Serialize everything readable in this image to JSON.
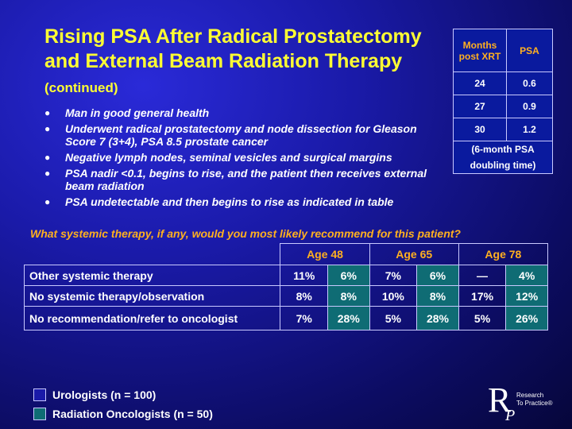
{
  "title": {
    "main": "Rising PSA After Radical Prostatectomy and External Beam Radiation Therapy",
    "suffix": "(continued)"
  },
  "bullets": [
    "Man in good general health",
    "Underwent radical prostatectomy and node dissection for Gleason Score 7 (3+4), PSA 8.5 prostate cancer",
    "Negative lymph nodes, seminal vesicles and surgical margins",
    "PSA nadir <0.1, begins to rise, and the patient then receives external beam radiation",
    "PSA undetectable and then begins to rise as indicated in table"
  ],
  "psa_table": {
    "header_months": "Months post XRT",
    "header_psa": "PSA",
    "rows": [
      {
        "months": "24",
        "psa": "0.6"
      },
      {
        "months": "27",
        "psa": "0.9"
      },
      {
        "months": "30",
        "psa": "1.2"
      }
    ],
    "footer": "(6-month PSA doubling time)"
  },
  "question": "What systemic therapy, if any, would you most likely recommend for this patient?",
  "main_table": {
    "ages": [
      "Age 48",
      "Age 65",
      "Age 78"
    ],
    "rows": [
      {
        "label": "Other systemic therapy",
        "values": [
          "11%",
          "6%",
          "7%",
          "6%",
          "—",
          "4%"
        ]
      },
      {
        "label": "No systemic therapy/observation",
        "values": [
          "8%",
          "8%",
          "10%",
          "8%",
          "17%",
          "12%"
        ]
      },
      {
        "label": "No recommendation/refer to oncologist",
        "values": [
          "7%",
          "28%",
          "5%",
          "28%",
          "5%",
          "26%"
        ]
      }
    ]
  },
  "legend": {
    "urologists": "Urologists  (n = 100)",
    "rad_onc": "Radiation Oncologists  (n = 50)"
  },
  "logo": {
    "mark": "RP",
    "line1": "Research",
    "line2": "To Practice®"
  },
  "colors": {
    "title": "#ffff33",
    "accent_orange": "#ffb020",
    "rad_onc_fill": "#0f6c74",
    "urologist_fill": "#1a1aa8"
  }
}
